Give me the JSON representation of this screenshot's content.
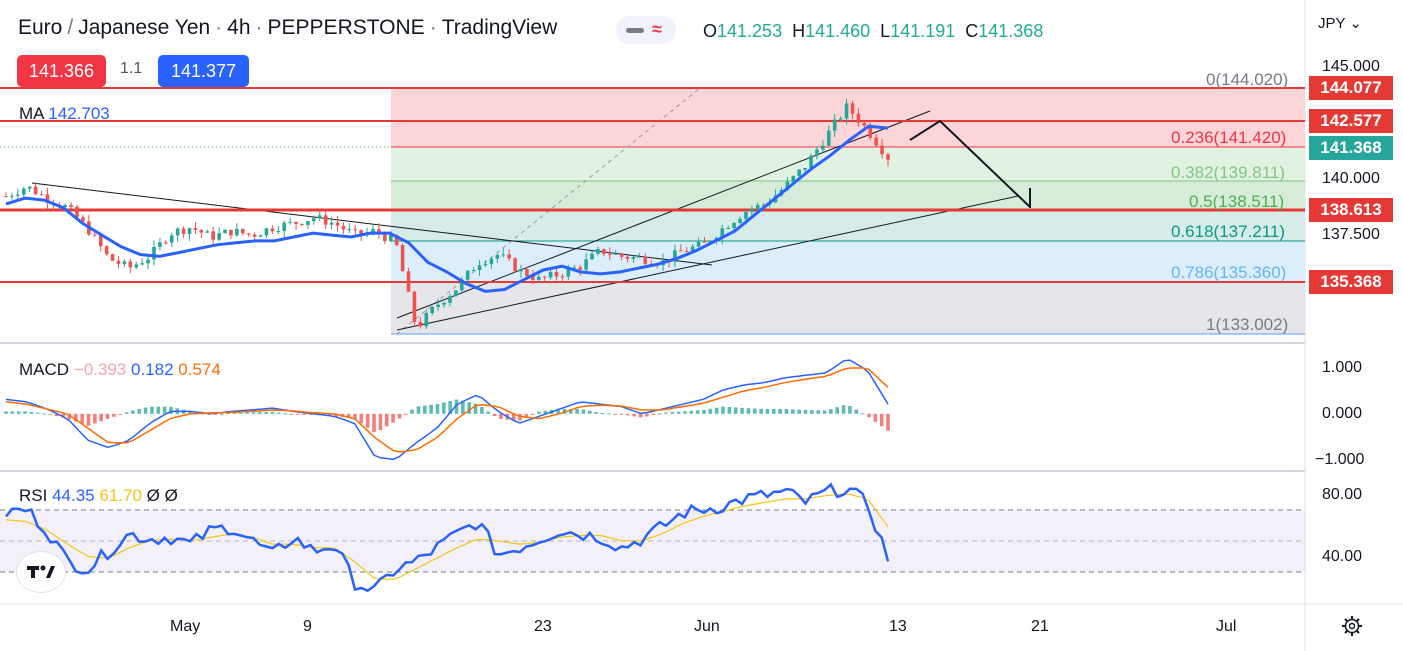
{
  "header": {
    "base": "Euro",
    "quote": "Japanese Yen",
    "interval": "4h",
    "exchange": "PEPPERSTONE",
    "platform": "TradingView"
  },
  "ohlc": {
    "o_key": "O",
    "o": "141.253",
    "h_key": "H",
    "h": "141.460",
    "l_key": "L",
    "l": "141.191",
    "c_key": "C",
    "c": "141.368"
  },
  "quote_box": {
    "sell": "141.366",
    "spread": "1.1",
    "buy": "141.377"
  },
  "currency": "JPY",
  "ma": {
    "label": "MA",
    "value": "142.703"
  },
  "macd": {
    "label": "MACD",
    "hist": "−0.393",
    "macd": "0.182",
    "signal": "0.574"
  },
  "rsi": {
    "label": "RSI",
    "value": "44.35",
    "ma": "61.70",
    "n1": "Ø",
    "n2": "Ø"
  },
  "fib_levels": [
    {
      "label": "0(144.020)",
      "price": 144.02
    },
    {
      "label": "0.236(141.420)",
      "price": 141.42
    },
    {
      "label": "0.382(139.811)",
      "price": 139.811
    },
    {
      "label": "0.5(138.511)",
      "price": 138.511
    },
    {
      "label": "0.618(137.211)",
      "price": 137.211
    },
    {
      "label": "0.786(135.360)",
      "price": 135.36
    },
    {
      "label": "1(133.002)",
      "price": 133.002
    }
  ],
  "price_tags": {
    "h1": "144.077",
    "h2": "142.577",
    "last": "141.368",
    "h3": "138.613",
    "h4": "135.368"
  },
  "price_axis": [
    "145.000",
    "140.000",
    "137.500"
  ],
  "macd_axis": [
    "1.000",
    "0.000",
    "−1.000"
  ],
  "rsi_axis": [
    "80.00",
    "40.00"
  ],
  "x_axis": [
    "May",
    "9",
    "23",
    "Jun",
    "13",
    "21",
    "Jul"
  ],
  "colors": {
    "up": "#26a69a",
    "down": "#ef5350",
    "ma": "#2962ff",
    "red_line": "#e53935",
    "fib_red": "#f23645",
    "fib_green": "#4caf50",
    "fib_blue": "#2196f3",
    "macd_signal": "#ff6d00",
    "rsi_ma": "#f5c518"
  },
  "chart_data": {
    "type": "candlestick",
    "timeframe": "4h",
    "price_range": [
      131.9,
      146.3
    ],
    "horizontal_levels": [
      144.077,
      142.577,
      138.613,
      135.368
    ],
    "fib_retracement": {
      "from": 133.002,
      "to": 144.02
    },
    "ma_series": [
      139.0,
      139.3,
      139.2,
      138.8,
      138.0,
      137.4,
      136.8,
      136.4,
      136.3,
      136.5,
      136.7,
      136.9,
      137.0,
      137.1,
      137.1,
      137.3,
      137.5,
      137.4,
      137.3,
      137.5,
      137.5,
      137.0,
      136.0,
      135.5,
      134.9,
      134.5,
      134.6,
      135.1,
      135.6,
      135.8,
      135.5,
      135.4,
      135.5,
      135.7,
      135.9,
      136.2,
      136.6,
      137.1,
      137.6,
      138.4,
      139.2,
      140.0,
      140.8,
      141.5,
      142.3,
      143.0,
      142.9
    ],
    "macd": {
      "range": [
        -1.0,
        1.2
      ],
      "latest": {
        "histogram": -0.393,
        "macd": 0.182,
        "signal": 0.574
      }
    },
    "rsi": {
      "range": [
        20,
        90
      ],
      "bands": [
        70,
        50,
        30
      ],
      "latest": {
        "rsi": 44.35,
        "ma": 61.7
      }
    }
  }
}
